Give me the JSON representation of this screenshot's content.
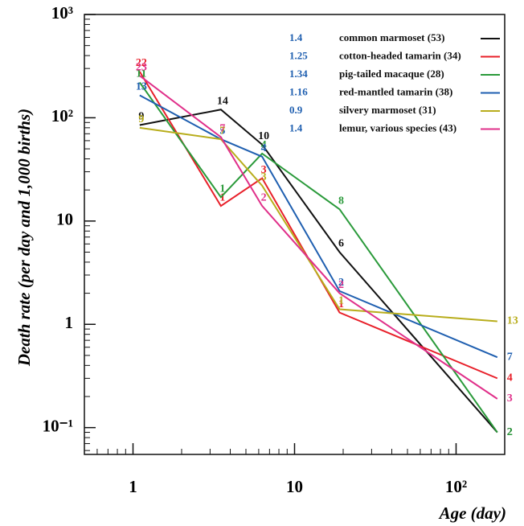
{
  "chart_data": {
    "type": "line",
    "y_label": "Death rate (per day and 1,000 births)",
    "x_label": "Age (day)",
    "x_log": true,
    "y_log": true,
    "xlim": [
      0.5,
      200
    ],
    "ylim": [
      0.055,
      1000
    ],
    "xticks": [
      1,
      10,
      {
        "value": 100,
        "label": "10²"
      }
    ],
    "yticks": [
      {
        "value": 0.1,
        "label": "10⁻¹"
      },
      1,
      10,
      {
        "value": 100,
        "label": "10²"
      },
      {
        "value": 1000,
        "label": "10³"
      }
    ],
    "legend_position": "upper right",
    "x": [
      1.1,
      3.5,
      6.3,
      19,
      180
    ],
    "series": [
      {
        "name": "common marmoset (53)",
        "coefficient": 1.4,
        "color": "#111111",
        "values": [
          85,
          120,
          55,
          5,
          0.09
        ],
        "counts": [
          9,
          14,
          10,
          6,
          2
        ]
      },
      {
        "name": "cotton-headed tamarin (34)",
        "coefficient": 1.25,
        "color": "#e8202a",
        "values": [
          280,
          14,
          26,
          1.3,
          0.3
        ],
        "counts": [
          22,
          1,
          3,
          1,
          4
        ]
      },
      {
        "name": "pig-tailed macaque (28)",
        "coefficient": 1.34,
        "color": "#2a9a3a",
        "values": [
          220,
          17,
          45,
          13,
          0.09
        ],
        "counts": [
          11,
          1,
          4,
          8,
          2
        ]
      },
      {
        "name": "red-mantled tamarin (38)",
        "coefficient": 1.16,
        "color": "#1f5fb0",
        "values": [
          165,
          62,
          42,
          2.1,
          0.48
        ],
        "counts": [
          13,
          5,
          4,
          2,
          7
        ]
      },
      {
        "name": "silvery marmoset (31)",
        "coefficient": 0.9,
        "color": "#b8ad1c",
        "values": [
          80,
          62,
          22,
          1.4,
          1.07
        ],
        "counts": [
          9,
          7,
          3,
          1,
          13
        ]
      },
      {
        "name": "lemur, various species (43)",
        "coefficient": 1.4,
        "color": "#e0308a",
        "values": [
          255,
          65,
          14,
          2,
          0.19
        ],
        "counts": [
          23,
          7,
          2,
          2,
          3
        ]
      }
    ]
  }
}
